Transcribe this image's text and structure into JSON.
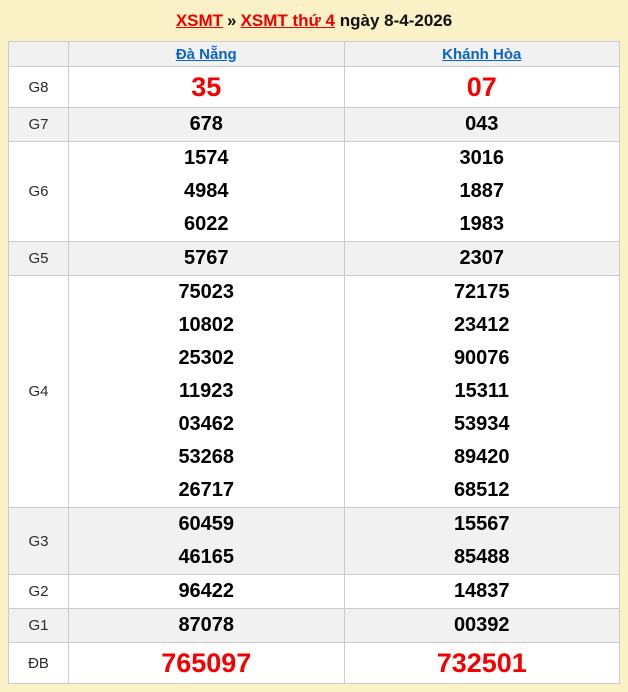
{
  "breadcrumb": {
    "link1": "XSMT",
    "separator": "»",
    "link2": "XSMT thứ 4",
    "date_text": "ngày 8-4-2026"
  },
  "colors": {
    "page_background": "#FBF1C7",
    "highlight_red": "#F50002",
    "link_red": "#EE0000",
    "link_blue": "#0765C8",
    "stripe_gray": "#F1F1F2",
    "border_gray": "#CBCBCB"
  },
  "table": {
    "columns": [
      "Đà Nẵng",
      "Khánh Hòa"
    ],
    "rows": [
      {
        "label": "G8",
        "highlight": true,
        "values": [
          [
            "35"
          ],
          [
            "07"
          ]
        ]
      },
      {
        "label": "G7",
        "highlight": false,
        "values": [
          [
            "678"
          ],
          [
            "043"
          ]
        ]
      },
      {
        "label": "G6",
        "highlight": false,
        "values": [
          [
            "1574",
            "4984",
            "6022"
          ],
          [
            "3016",
            "1887",
            "1983"
          ]
        ]
      },
      {
        "label": "G5",
        "highlight": false,
        "values": [
          [
            "5767"
          ],
          [
            "2307"
          ]
        ]
      },
      {
        "label": "G4",
        "highlight": false,
        "values": [
          [
            "75023",
            "10802",
            "25302",
            "11923",
            "03462",
            "53268",
            "26717"
          ],
          [
            "72175",
            "23412",
            "90076",
            "15311",
            "53934",
            "89420",
            "68512"
          ]
        ]
      },
      {
        "label": "G3",
        "highlight": false,
        "values": [
          [
            "60459",
            "46165"
          ],
          [
            "15567",
            "85488"
          ]
        ]
      },
      {
        "label": "G2",
        "highlight": false,
        "values": [
          [
            "96422"
          ],
          [
            "14837"
          ]
        ]
      },
      {
        "label": "G1",
        "highlight": false,
        "values": [
          [
            "87078"
          ],
          [
            "00392"
          ]
        ]
      },
      {
        "label": "ĐB",
        "highlight": true,
        "values": [
          [
            "765097"
          ],
          [
            "732501"
          ]
        ]
      }
    ]
  }
}
